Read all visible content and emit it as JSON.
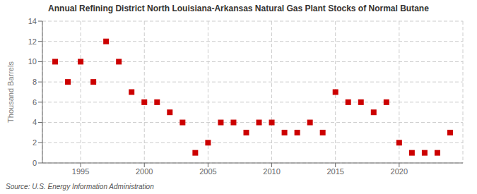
{
  "chart_data": {
    "type": "scatter",
    "title": "Annual Refining District North Louisiana-Arkansas Natural Gas Plant Stocks of Normal Butane",
    "ylabel": "Thousand Barrels",
    "annotations": [
      "Source: U.S. Energy Information Administration"
    ],
    "x": [
      1993,
      1994,
      1995,
      1996,
      1997,
      1998,
      1999,
      2000,
      2001,
      2002,
      2003,
      2004,
      2005,
      2006,
      2007,
      2008,
      2009,
      2010,
      2011,
      2012,
      2013,
      2014,
      2015,
      2016,
      2017,
      2018,
      2019,
      2020,
      2021,
      2022,
      2023,
      2024
    ],
    "values": [
      10,
      8,
      10,
      8,
      12,
      10,
      7,
      6,
      6,
      5,
      4,
      1,
      2,
      4,
      4,
      3,
      4,
      4,
      3,
      3,
      4,
      3,
      7,
      6,
      6,
      5,
      6,
      2,
      1,
      1,
      1,
      3
    ],
    "color": "#cc0000",
    "marker": "square",
    "xlim": [
      1992,
      2025
    ],
    "ylim": [
      0,
      14
    ],
    "xticks": [
      1995,
      2000,
      2005,
      2010,
      2015,
      2020
    ],
    "yticks": [
      0,
      2,
      4,
      6,
      8,
      10,
      12,
      14
    ],
    "grid": true
  }
}
